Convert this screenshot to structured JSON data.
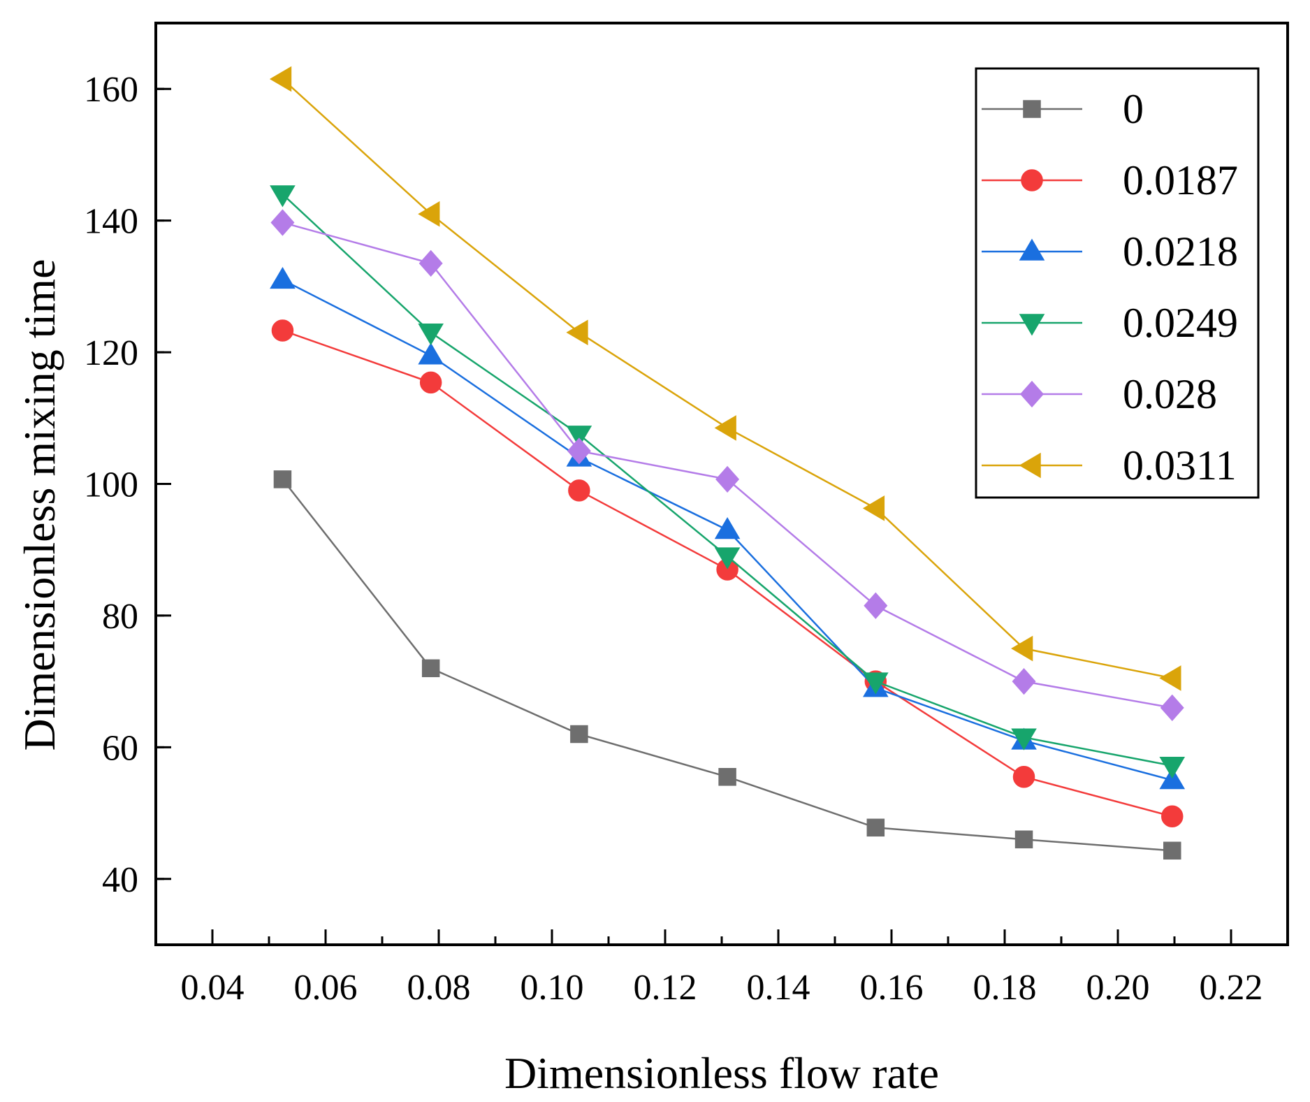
{
  "chart_data": {
    "type": "line",
    "xlabel": "Dimensionless flow rate",
    "ylabel": "Dimensionless mixing time",
    "xlim": [
      0.03,
      0.23
    ],
    "ylim": [
      30,
      170
    ],
    "xticks": [
      0.04,
      0.06,
      0.08,
      0.1,
      0.12,
      0.14,
      0.16,
      0.18,
      0.2,
      0.22
    ],
    "xtick_labels": [
      "0.04",
      "0.06",
      "0.08",
      "0.10",
      "0.12",
      "0.14",
      "0.16",
      "0.18",
      "0.20",
      "0.22"
    ],
    "yticks": [
      40,
      60,
      80,
      100,
      120,
      140,
      160
    ],
    "ytick_labels": [
      "40",
      "60",
      "80",
      "100",
      "120",
      "140",
      "160"
    ],
    "grid": false,
    "legend_position": "top-right",
    "x": [
      0.0524,
      0.0786,
      0.1048,
      0.131,
      0.1572,
      0.1834,
      0.2096
    ],
    "series": [
      {
        "name": "0",
        "color": "#6e6e6e",
        "marker": "square",
        "values": [
          100.7,
          72.0,
          62.0,
          55.5,
          47.8,
          46.0,
          44.3
        ]
      },
      {
        "name": "0.0187",
        "color": "#f33b3b",
        "marker": "circle",
        "values": [
          123.3,
          115.4,
          99.0,
          87.0,
          70.0,
          55.5,
          49.5
        ]
      },
      {
        "name": "0.0218",
        "color": "#1a6fdf",
        "marker": "triangle-up",
        "values": [
          131.0,
          119.5,
          104.0,
          93.0,
          69.0,
          61.0,
          55.0
        ]
      },
      {
        "name": "0.0249",
        "color": "#17a56c",
        "marker": "triangle-down",
        "values": [
          144.0,
          123.0,
          107.5,
          89.0,
          70.0,
          61.5,
          57.2
        ]
      },
      {
        "name": "0.028",
        "color": "#b47ce8",
        "marker": "diamond",
        "values": [
          139.7,
          133.5,
          105.0,
          100.7,
          81.5,
          70.0,
          66.0
        ]
      },
      {
        "name": "0.0311",
        "color": "#daa40a",
        "marker": "triangle-left",
        "values": [
          161.5,
          141.0,
          123.0,
          108.5,
          96.3,
          75.0,
          70.5
        ]
      }
    ]
  }
}
